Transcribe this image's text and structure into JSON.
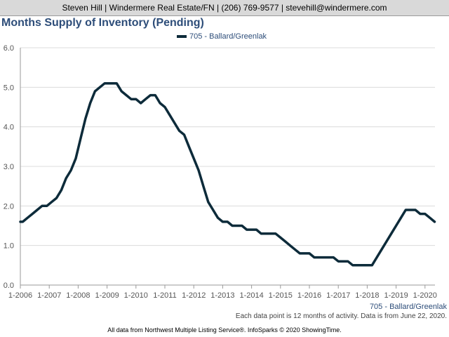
{
  "header": {
    "contact": "Steven Hill | Windermere Real Estate/FN | (206) 769-9577 | stevehill@windermere.com"
  },
  "chart_data": {
    "type": "line",
    "title": "Months Supply of Inventory (Pending)",
    "xlabel": "",
    "ylabel": "",
    "ylim": [
      0,
      6
    ],
    "y_ticks": [
      "0.0",
      "1.0",
      "2.0",
      "3.0",
      "4.0",
      "5.0",
      "6.0"
    ],
    "x_ticks": [
      "1-2006",
      "1-2007",
      "1-2008",
      "1-2009",
      "1-2010",
      "1-2011",
      "1-2012",
      "1-2013",
      "1-2014",
      "1-2015",
      "1-2016",
      "1-2017",
      "1-2018",
      "1-2019",
      "1-2020"
    ],
    "grid": true,
    "legend_position": "top-center",
    "color": "#0d2b3a",
    "series": [
      {
        "name": "705 - Ballard/Greenlak",
        "x": [
          "2006-01",
          "2006-02",
          "2006-04",
          "2006-06",
          "2006-08",
          "2006-10",
          "2006-12",
          "2007-02",
          "2007-04",
          "2007-06",
          "2007-08",
          "2007-10",
          "2007-12",
          "2008-02",
          "2008-04",
          "2008-06",
          "2008-08",
          "2008-10",
          "2008-12",
          "2009-01",
          "2009-03",
          "2009-05",
          "2009-07",
          "2009-09",
          "2009-11",
          "2010-01",
          "2010-03",
          "2010-05",
          "2010-07",
          "2010-09",
          "2010-11",
          "2011-01",
          "2011-03",
          "2011-05",
          "2011-07",
          "2011-09",
          "2011-11",
          "2012-01",
          "2012-03",
          "2012-05",
          "2012-07",
          "2012-09",
          "2012-11",
          "2013-01",
          "2013-03",
          "2013-05",
          "2013-07",
          "2013-09",
          "2013-11",
          "2014-01",
          "2014-03",
          "2014-05",
          "2014-07",
          "2014-09",
          "2014-11",
          "2015-01",
          "2015-03",
          "2015-05",
          "2015-07",
          "2015-09",
          "2015-11",
          "2016-01",
          "2016-03",
          "2016-05",
          "2016-07",
          "2016-09",
          "2016-11",
          "2017-01",
          "2017-03",
          "2017-05",
          "2017-07",
          "2017-09",
          "2017-11",
          "2018-01",
          "2018-03",
          "2018-05",
          "2018-07",
          "2018-09",
          "2018-11",
          "2019-01",
          "2019-03",
          "2019-05",
          "2019-07",
          "2019-09",
          "2019-11",
          "2020-01",
          "2020-03",
          "2020-05"
        ],
        "values": [
          1.6,
          1.6,
          1.7,
          1.8,
          1.9,
          2.0,
          2.0,
          2.1,
          2.2,
          2.4,
          2.7,
          2.9,
          3.2,
          3.7,
          4.2,
          4.6,
          4.9,
          5.0,
          5.1,
          5.1,
          5.1,
          5.1,
          4.9,
          4.8,
          4.7,
          4.7,
          4.6,
          4.7,
          4.8,
          4.8,
          4.6,
          4.5,
          4.3,
          4.1,
          3.9,
          3.8,
          3.5,
          3.2,
          2.9,
          2.5,
          2.1,
          1.9,
          1.7,
          1.6,
          1.6,
          1.5,
          1.5,
          1.5,
          1.4,
          1.4,
          1.4,
          1.3,
          1.3,
          1.3,
          1.3,
          1.2,
          1.1,
          1.0,
          0.9,
          0.8,
          0.8,
          0.8,
          0.7,
          0.7,
          0.7,
          0.7,
          0.7,
          0.6,
          0.6,
          0.6,
          0.5,
          0.5,
          0.5,
          0.5,
          0.5,
          0.7,
          0.9,
          1.1,
          1.3,
          1.5,
          1.7,
          1.9,
          1.9,
          1.9,
          1.8,
          1.8,
          1.7,
          1.6
        ]
      }
    ]
  },
  "series_end_label": "705 - Ballard/Greenlak",
  "note": "Each data point is 12 months of activity. Data is from June 22, 2020.",
  "footer": "All data from Northwest Multiple Listing Service®. InfoSparks © 2020 ShowingTime."
}
